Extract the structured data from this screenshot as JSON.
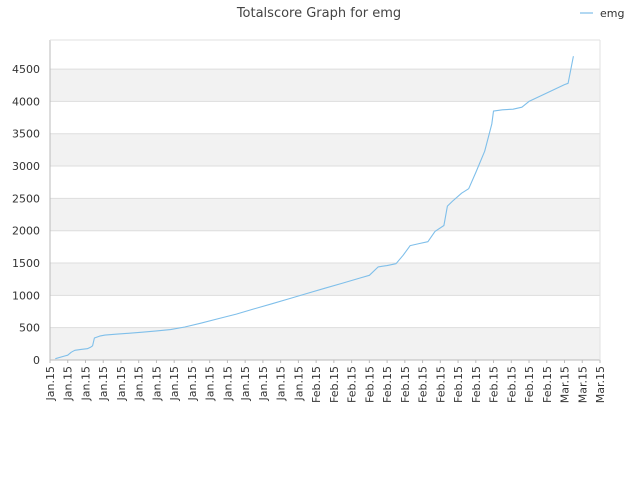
{
  "chart_data": {
    "type": "line",
    "title": "Totalscore Graph for emg",
    "xlabel": "",
    "ylabel": "",
    "ylim": [
      0,
      4950
    ],
    "yticks": [
      0,
      500,
      1000,
      1500,
      2000,
      2500,
      3000,
      3500,
      4000,
      4500
    ],
    "x_tick_labels": [
      "Jan.15",
      "Jan.15",
      "Jan.15",
      "Jan.15",
      "Jan.15",
      "Jan.15",
      "Jan.15",
      "Jan.15",
      "Jan.15",
      "Jan.15",
      "Jan.15",
      "Jan.15",
      "Jan.15",
      "Jan.15",
      "Jan.15",
      "Feb.15",
      "Feb.15",
      "Feb.15",
      "Feb.15",
      "Feb.15",
      "Feb.15",
      "Feb.15",
      "Feb.15",
      "Feb.15",
      "Feb.15",
      "Feb.15",
      "Feb.15",
      "Feb.15",
      "Feb.15",
      "Mar.15",
      "Mar.15",
      "Mar.15"
    ],
    "legend": {
      "position": "top-right"
    },
    "grid": "alternating horizontal bands",
    "colors": {
      "series": "#7fbfea",
      "band": "#f2f2f2",
      "grid": "#dddddd",
      "axis": "#bbbbbb"
    },
    "series": [
      {
        "name": "emg",
        "points": [
          [
            0.3,
            20
          ],
          [
            0.8,
            60
          ],
          [
            1.0,
            75
          ],
          [
            1.2,
            120
          ],
          [
            1.4,
            150
          ],
          [
            1.8,
            165
          ],
          [
            2.1,
            175
          ],
          [
            2.3,
            200
          ],
          [
            2.4,
            220
          ],
          [
            2.5,
            340
          ],
          [
            2.8,
            370
          ],
          [
            3.1,
            385
          ],
          [
            3.8,
            400
          ],
          [
            4.5,
            415
          ],
          [
            5.2,
            430
          ],
          [
            6.0,
            450
          ],
          [
            6.8,
            470
          ],
          [
            7.6,
            510
          ],
          [
            8.5,
            570
          ],
          [
            9.5,
            640
          ],
          [
            10.5,
            710
          ],
          [
            11.5,
            790
          ],
          [
            12.5,
            870
          ],
          [
            13.5,
            950
          ],
          [
            14.5,
            1030
          ],
          [
            15.5,
            1110
          ],
          [
            16.5,
            1190
          ],
          [
            17.5,
            1270
          ],
          [
            18.0,
            1310
          ],
          [
            18.5,
            1440
          ],
          [
            19.0,
            1460
          ],
          [
            19.5,
            1490
          ],
          [
            19.9,
            1620
          ],
          [
            20.3,
            1770
          ],
          [
            20.8,
            1800
          ],
          [
            21.3,
            1830
          ],
          [
            21.7,
            1990
          ],
          [
            22.2,
            2080
          ],
          [
            22.4,
            2380
          ],
          [
            22.7,
            2460
          ],
          [
            23.2,
            2580
          ],
          [
            23.6,
            2650
          ],
          [
            24.0,
            2900
          ],
          [
            24.5,
            3230
          ],
          [
            24.9,
            3650
          ],
          [
            25.0,
            3850
          ],
          [
            25.5,
            3870
          ],
          [
            26.1,
            3880
          ],
          [
            26.6,
            3910
          ],
          [
            27.0,
            4000
          ],
          [
            28.0,
            4130
          ],
          [
            29.0,
            4260
          ],
          [
            29.2,
            4280
          ],
          [
            29.5,
            4700
          ]
        ]
      }
    ]
  }
}
